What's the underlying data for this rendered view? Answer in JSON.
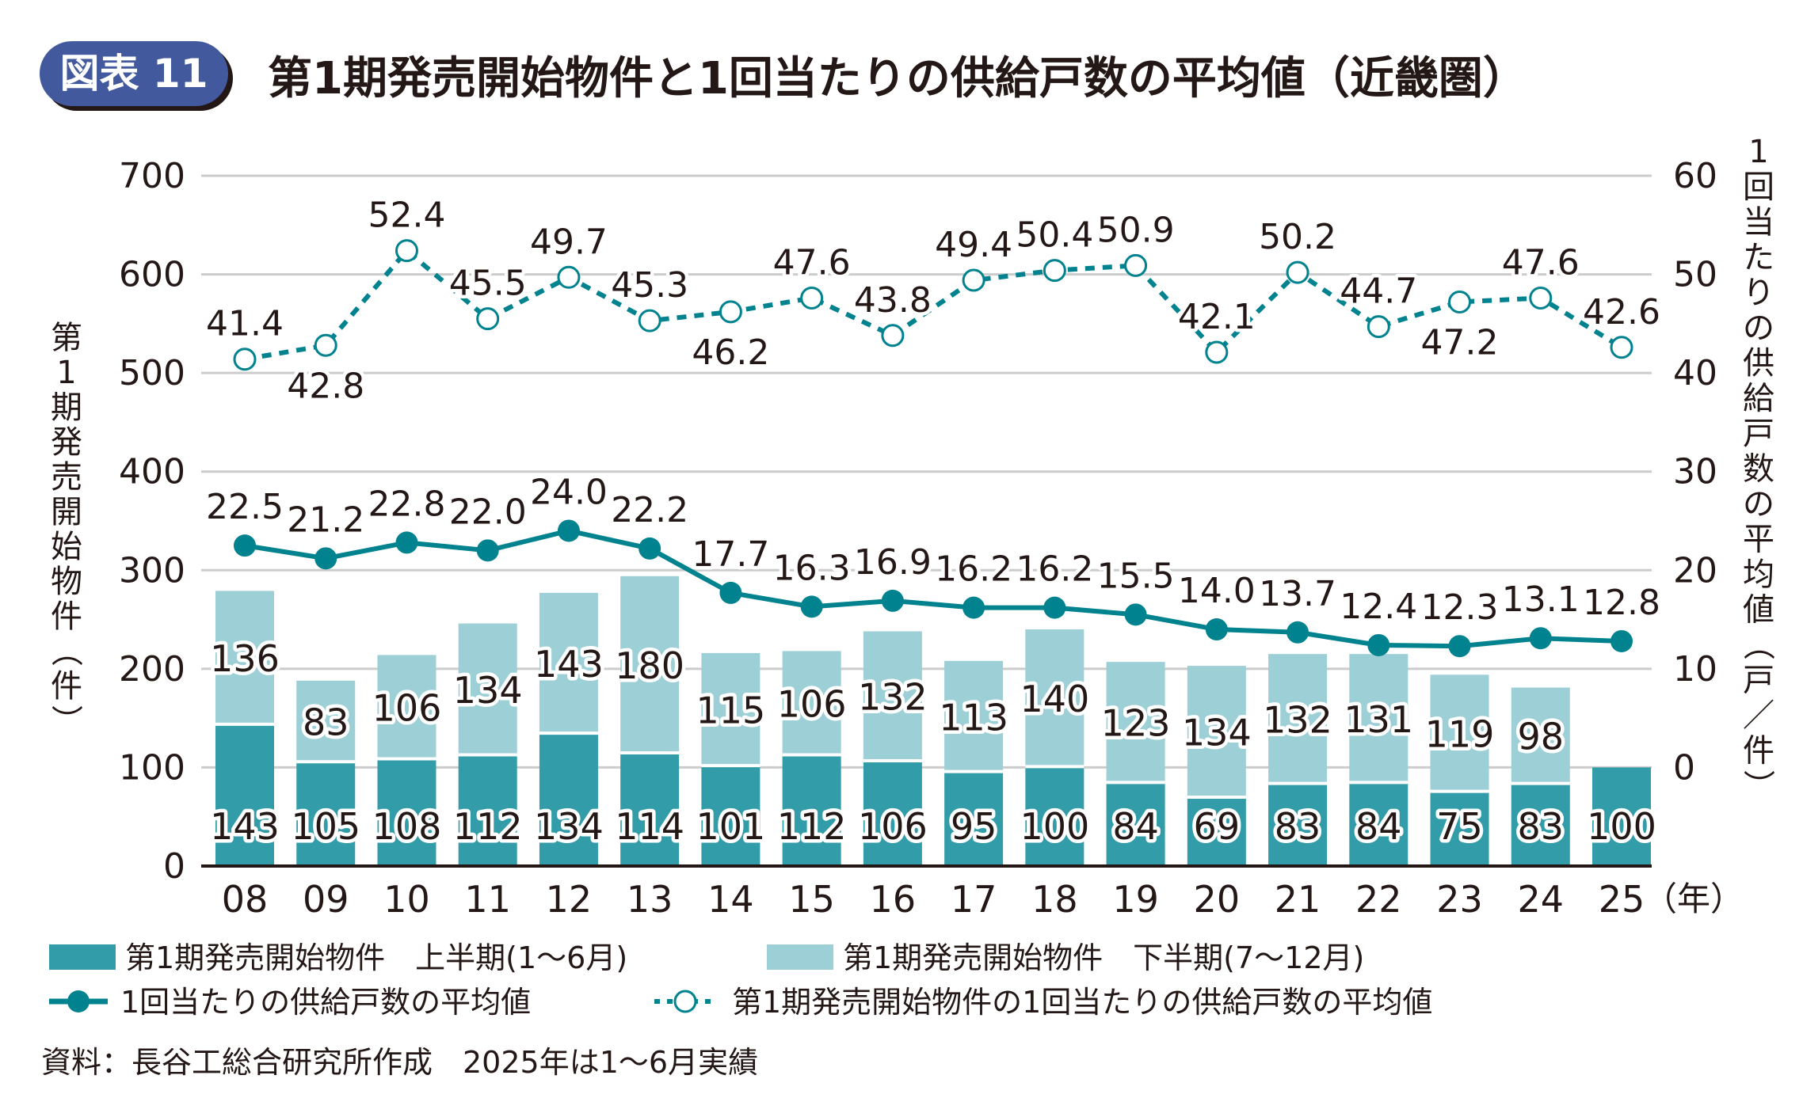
{
  "badge": {
    "label": "図表 11",
    "color": "#43599E"
  },
  "chart_data": {
    "type": "bar",
    "title": "第1期発売開始物件と1回当たりの供給戸数の平均値（近畿圏）",
    "categories": [
      "08",
      "09",
      "10",
      "11",
      "12",
      "13",
      "14",
      "15",
      "16",
      "17",
      "18",
      "19",
      "20",
      "21",
      "22",
      "23",
      "24",
      "25"
    ],
    "x_unit": "（年）",
    "ylabel": "第1期発売開始物件（件）",
    "y2label": "1回当たりの供給戸数の平均値（戸／件）",
    "ylim": [
      0,
      700
    ],
    "yticks": [
      0,
      100,
      200,
      300,
      400,
      500,
      600,
      700
    ],
    "y2lim": [
      -10,
      60
    ],
    "y2ticks": [
      0,
      10,
      20,
      30,
      40,
      50,
      60
    ],
    "grid": true,
    "stacked": true,
    "legend_position": "bottom",
    "series": [
      {
        "name": "第1期発売開始物件　上半期(1～6月)",
        "kind": "bar",
        "axis": "left",
        "color": "#339CA9",
        "values": [
          143,
          105,
          108,
          112,
          134,
          114,
          101,
          112,
          106,
          95,
          100,
          84,
          69,
          83,
          84,
          75,
          83,
          100
        ]
      },
      {
        "name": "第1期発売開始物件　下半期(7～12月)",
        "kind": "bar",
        "axis": "left",
        "color": "#9CCFD6",
        "values": [
          136,
          83,
          106,
          134,
          143,
          180,
          115,
          106,
          132,
          113,
          140,
          123,
          134,
          132,
          131,
          119,
          98,
          null
        ]
      },
      {
        "name": "1回当たりの供給戸数の平均値",
        "kind": "line",
        "style": "solid",
        "marker": "filled",
        "axis": "right",
        "color": "#00838F",
        "values": [
          22.5,
          21.2,
          22.8,
          22.0,
          24.0,
          22.2,
          17.7,
          16.3,
          16.9,
          16.2,
          16.2,
          15.5,
          14.0,
          13.7,
          12.4,
          12.3,
          13.1,
          12.8
        ],
        "labels": [
          "22.5",
          "21.2",
          "22.8",
          "22.0",
          "24.0",
          "22.2",
          "17.7",
          "16.3",
          "16.9",
          "16.2",
          "16.2",
          "15.5",
          "14.0",
          "13.7",
          "12.4",
          "12.3",
          "13.1",
          "12.8"
        ]
      },
      {
        "name": "第1期発売開始物件の1回当たりの供給戸数の平均値",
        "kind": "line",
        "style": "dashed",
        "marker": "open",
        "axis": "right",
        "color": "#00838F",
        "values": [
          41.4,
          42.8,
          52.4,
          45.5,
          49.7,
          45.3,
          46.2,
          47.6,
          43.8,
          49.4,
          50.4,
          50.9,
          42.1,
          50.2,
          44.7,
          47.2,
          47.6,
          42.6
        ],
        "labels": [
          "41.4",
          "42.8",
          "52.4",
          "45.5",
          "49.7",
          "45.3",
          "46.2",
          "47.6",
          "43.8",
          "49.4",
          "50.4",
          "50.9",
          "42.1",
          "50.2",
          "44.7",
          "47.2",
          "47.6",
          "42.6"
        ],
        "label_side": [
          "above",
          "below",
          "above",
          "above",
          "above",
          "above",
          "below",
          "above",
          "above",
          "above",
          "above",
          "above",
          "above",
          "above",
          "above",
          "below",
          "above",
          "above"
        ]
      }
    ],
    "legend": [
      {
        "label": "第1期発売開始物件　上半期(1～6月)",
        "symbol": "square",
        "color": "#339CA9"
      },
      {
        "label": "第1期発売開始物件　下半期(7～12月)",
        "symbol": "square",
        "color": "#9CCFD6"
      },
      {
        "label": "1回当たりの供給戸数の平均値",
        "symbol": "line-filled-circle",
        "color": "#00838F"
      },
      {
        "label": "第1期発売開始物件の1回当たりの供給戸数の平均値",
        "symbol": "dashed-open-circle",
        "color": "#00838F"
      }
    ],
    "note": "資料：長谷工総合研究所作成　2025年は1～6月実績"
  }
}
